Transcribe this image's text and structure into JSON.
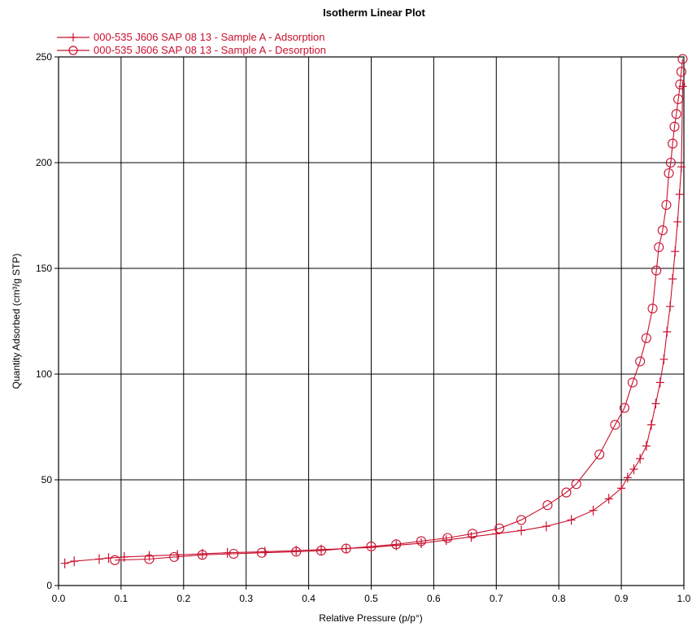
{
  "chart_data": {
    "type": "line",
    "title": "Isotherm Linear Plot",
    "xlabel": "Relative Pressure (p/p°)",
    "ylabel": "Quantity Adsorbed (cm³/g STP)",
    "xlim": [
      0.0,
      1.0
    ],
    "ylim": [
      0,
      250
    ],
    "x_ticks": [
      "0.0",
      "0.1",
      "0.2",
      "0.3",
      "0.4",
      "0.5",
      "0.6",
      "0.7",
      "0.8",
      "0.9",
      "1.0"
    ],
    "y_ticks": [
      "0",
      "50",
      "100",
      "150",
      "200",
      "250"
    ],
    "x_tick_values": [
      0.0,
      0.1,
      0.2,
      0.3,
      0.4,
      0.5,
      0.6,
      0.7,
      0.8,
      0.9,
      1.0
    ],
    "y_tick_values": [
      0,
      50,
      100,
      150,
      200,
      250
    ],
    "grid": true,
    "legend_position": "top-left",
    "series": [
      {
        "name": "000-535 J606 SAP 08 13 - Sample A  - Adsorption",
        "marker": "plus",
        "color": "#c8102e",
        "x": [
          0.01,
          0.025,
          0.065,
          0.08,
          0.105,
          0.145,
          0.19,
          0.23,
          0.27,
          0.33,
          0.38,
          0.42,
          0.46,
          0.5,
          0.54,
          0.58,
          0.62,
          0.66,
          0.7,
          0.74,
          0.78,
          0.82,
          0.855,
          0.88,
          0.9,
          0.91,
          0.92,
          0.93,
          0.94,
          0.948,
          0.955,
          0.962,
          0.968,
          0.973,
          0.978,
          0.982,
          0.986,
          0.99,
          0.993,
          0.996,
          0.998
        ],
        "y": [
          10.5,
          11.5,
          12.5,
          13.0,
          13.5,
          14.0,
          14.5,
          15.0,
          15.5,
          16.0,
          16.5,
          17.0,
          17.5,
          18.0,
          19.0,
          20.0,
          21.5,
          23.0,
          24.5,
          26.0,
          28.0,
          31.0,
          35.5,
          41.0,
          46.0,
          51.0,
          55.0,
          60.0,
          66.0,
          76.0,
          86.0,
          96.0,
          107.0,
          120.0,
          132.0,
          145.0,
          158.0,
          172.0,
          185.0,
          198.0,
          236.0
        ]
      },
      {
        "name": "000-535 J606 SAP 08 13 - Sample A  - Desorption",
        "marker": "circle",
        "color": "#c8102e",
        "x": [
          0.998,
          0.996,
          0.994,
          0.991,
          0.988,
          0.985,
          0.982,
          0.979,
          0.976,
          0.972,
          0.966,
          0.96,
          0.956,
          0.95,
          0.94,
          0.93,
          0.918,
          0.905,
          0.89,
          0.865,
          0.828,
          0.812,
          0.782,
          0.74,
          0.705,
          0.662,
          0.622,
          0.58,
          0.54,
          0.5,
          0.46,
          0.42,
          0.38,
          0.325,
          0.28,
          0.23,
          0.185,
          0.145,
          0.09
        ],
        "y": [
          249.0,
          243.0,
          237.0,
          230.0,
          223.0,
          217.0,
          209.0,
          200.0,
          195.0,
          180.0,
          168.0,
          160.0,
          149.0,
          131.0,
          117.0,
          106.0,
          96.0,
          84.0,
          76.0,
          62.0,
          48.0,
          44.0,
          38.0,
          31.0,
          27.0,
          24.5,
          22.5,
          21.0,
          19.5,
          18.5,
          17.5,
          16.5,
          16.0,
          15.5,
          15.0,
          14.5,
          13.5,
          12.5,
          12.0
        ]
      }
    ]
  }
}
